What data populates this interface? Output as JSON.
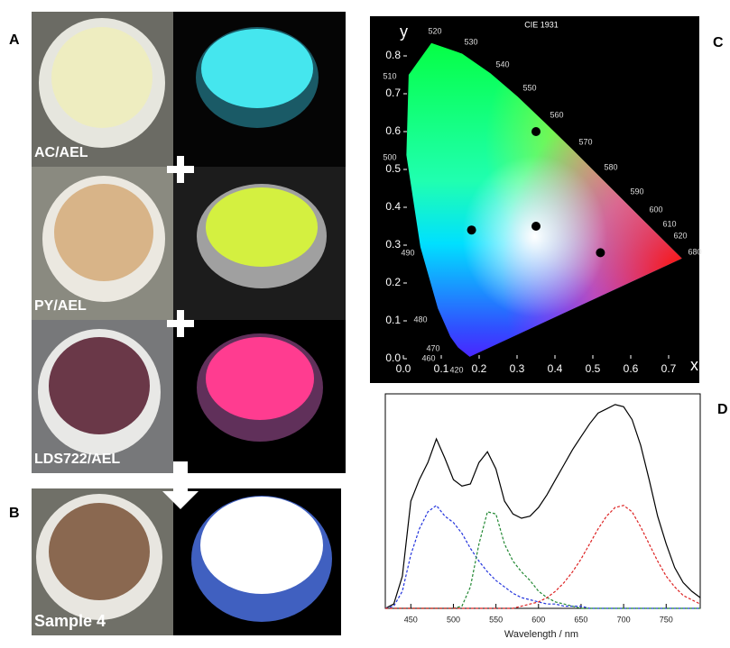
{
  "panels": {
    "A": {
      "letter": "A",
      "samples": [
        "AC/AEL",
        "PY/AEL",
        "LDS722/AEL"
      ]
    },
    "B": {
      "letter": "B",
      "sample": "Sample 4"
    }
  },
  "chart_data": [
    {
      "type": "scatter",
      "panel_label": "C",
      "title": "CIE 1931",
      "xlabel": "x",
      "ylabel": "y",
      "x": [
        0.18,
        0.35,
        0.35,
        0.52
      ],
      "y": [
        0.34,
        0.6,
        0.35,
        0.28
      ],
      "color": "#000000",
      "xlim": [
        0,
        0.78
      ],
      "ylim": [
        0,
        0.85
      ],
      "xticks": [
        {
          "value": 0,
          "label": "0.0"
        },
        0.1,
        0.2,
        0.3,
        0.4,
        0.5,
        0.6,
        0.7
      ],
      "yticks": [
        {
          "value": 0,
          "label": "0.0"
        },
        0.1,
        0.2,
        0.3,
        0.4,
        0.5,
        0.6,
        0.7,
        0.8
      ],
      "locus_labels": [
        "520",
        "530",
        "540",
        "550",
        "560",
        "570",
        "580",
        "590",
        "600",
        "610",
        "620",
        "680",
        "490",
        "480",
        "470",
        "460",
        "420",
        "510",
        "500"
      ]
    },
    {
      "type": "line",
      "panel_label": "D",
      "xlabel": "Wavelength / nm",
      "x": [
        420,
        430,
        440,
        450,
        460,
        470,
        480,
        490,
        500,
        510,
        520,
        530,
        540,
        550,
        560,
        570,
        580,
        590,
        600,
        610,
        620,
        630,
        640,
        650,
        660,
        670,
        680,
        690,
        700,
        710,
        720,
        730,
        740,
        750,
        760,
        770,
        780,
        790
      ],
      "series": [
        {
          "color": "#000000",
          "dashed": false,
          "values": [
            0,
            0.02,
            0.15,
            0.5,
            0.6,
            0.68,
            0.79,
            0.7,
            0.6,
            0.57,
            0.58,
            0.68,
            0.73,
            0.65,
            0.5,
            0.44,
            0.42,
            0.43,
            0.47,
            0.53,
            0.6,
            0.67,
            0.74,
            0.8,
            0.86,
            0.91,
            0.93,
            0.95,
            0.94,
            0.88,
            0.76,
            0.6,
            0.43,
            0.3,
            0.19,
            0.12,
            0.08,
            0.05
          ]
        },
        {
          "color": "#2233dd",
          "dashed": true,
          "values": [
            0,
            0.01,
            0.08,
            0.25,
            0.37,
            0.45,
            0.48,
            0.43,
            0.4,
            0.35,
            0.28,
            0.22,
            0.17,
            0.13,
            0.1,
            0.07,
            0.05,
            0.04,
            0.03,
            0.02,
            0.02,
            0.01,
            0.01,
            0.01,
            0,
            0,
            0,
            0,
            0,
            0,
            0,
            0,
            0,
            0,
            0,
            0,
            0,
            0
          ]
        },
        {
          "color": "#228833",
          "dashed": true,
          "values": [
            0,
            0,
            0,
            0,
            0,
            0,
            0,
            0,
            0,
            0.01,
            0.1,
            0.3,
            0.45,
            0.44,
            0.3,
            0.22,
            0.17,
            0.13,
            0.08,
            0.05,
            0.03,
            0.02,
            0.01,
            0,
            0,
            0,
            0,
            0,
            0,
            0,
            0,
            0,
            0,
            0,
            0,
            0,
            0,
            0
          ]
        },
        {
          "color": "#dd2222",
          "dashed": true,
          "values": [
            0,
            0,
            0,
            0,
            0,
            0,
            0,
            0,
            0,
            0,
            0,
            0,
            0,
            0,
            0,
            0,
            0.01,
            0.02,
            0.03,
            0.05,
            0.08,
            0.12,
            0.17,
            0.23,
            0.3,
            0.37,
            0.43,
            0.47,
            0.48,
            0.45,
            0.38,
            0.3,
            0.22,
            0.15,
            0.1,
            0.06,
            0.04,
            0.02
          ]
        }
      ],
      "xlim": [
        420,
        790
      ],
      "ylim": [
        0,
        1
      ],
      "xticks": [
        450,
        500,
        550,
        600,
        650,
        700,
        750
      ]
    }
  ]
}
